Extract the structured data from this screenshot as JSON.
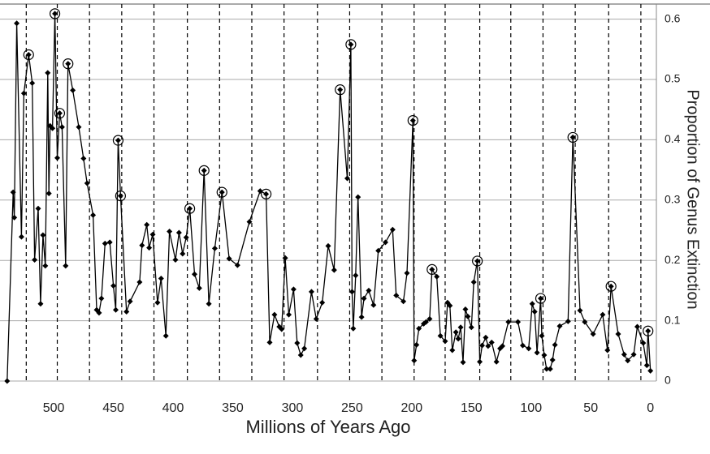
{
  "chart_data": {
    "type": "line",
    "x_label": "Millions of Years Ago",
    "y_label": "Proportion of Genus Extinction",
    "xlim": [
      545,
      -5
    ],
    "ylim": [
      0,
      0.625
    ],
    "xticks": [
      500,
      450,
      400,
      350,
      300,
      250,
      200,
      150,
      100,
      50,
      0
    ],
    "yticks": [
      0,
      0.1,
      0.2,
      0.3,
      0.4,
      0.5,
      0.6
    ],
    "grid": true,
    "color": "#000000",
    "reference_lines": [
      523,
      497,
      470,
      443,
      416,
      388,
      361,
      334,
      307,
      279,
      252,
      225,
      198,
      172,
      143,
      117,
      90,
      63,
      35,
      8
    ],
    "highlight_indices": [
      6,
      17,
      19,
      22,
      35,
      36,
      52,
      55,
      58,
      63,
      79,
      81,
      96,
      103,
      118,
      134,
      143,
      149,
      157
    ],
    "x": [
      539,
      534,
      533,
      531,
      527,
      525,
      521,
      518,
      516,
      513,
      511,
      509,
      507,
      505,
      504,
      503,
      501,
      499,
      497,
      495,
      493,
      490,
      488,
      484,
      479,
      475,
      472,
      467,
      464,
      462,
      460,
      457,
      453,
      450,
      448,
      446,
      444,
      439,
      436,
      428,
      426,
      422,
      420,
      417,
      413,
      410,
      406,
      403,
      398,
      395,
      392,
      389,
      386,
      382,
      378,
      374,
      370,
      365,
      359,
      353,
      346,
      336,
      327,
      322,
      319,
      315,
      311,
      309,
      306,
      303,
      299,
      296,
      293,
      290,
      284,
      280,
      275,
      270,
      265,
      260,
      254,
      251,
      250,
      249,
      247,
      245,
      242,
      240,
      236,
      232,
      228,
      222,
      216,
      213,
      207,
      204,
      199,
      198,
      196,
      194,
      190,
      188,
      185,
      183,
      179,
      176,
      172,
      170,
      168,
      166,
      163,
      161,
      159,
      157,
      155,
      153,
      150,
      148,
      145,
      143,
      141,
      138,
      136,
      133,
      129,
      126,
      124,
      119,
      111,
      107,
      102,
      99,
      97,
      95,
      92,
      91,
      89,
      87,
      84,
      82,
      80,
      76,
      69,
      65,
      59,
      55,
      48,
      40,
      36,
      33,
      27,
      22,
      19,
      14,
      11,
      6,
      3,
      2,
      0
    ],
    "values": [
      0,
      0.313,
      0.271,
      0.593,
      0.239,
      0.477,
      0.541,
      0.494,
      0.201,
      0.286,
      0.128,
      0.242,
      0.191,
      0.511,
      0.311,
      0.423,
      0.419,
      0.609,
      0.37,
      0.444,
      0.421,
      0.191,
      0.526,
      0.482,
      0.421,
      0.369,
      0.328,
      0.275,
      0.118,
      0.113,
      0.137,
      0.228,
      0.23,
      0.158,
      0.118,
      0.399,
      0.307,
      0.115,
      0.132,
      0.164,
      0.225,
      0.259,
      0.221,
      0.243,
      0.13,
      0.17,
      0.075,
      0.248,
      0.201,
      0.246,
      0.211,
      0.238,
      0.286,
      0.177,
      0.154,
      0.349,
      0.128,
      0.22,
      0.313,
      0.203,
      0.192,
      0.264,
      0.315,
      0.31,
      0.064,
      0.11,
      0.09,
      0.086,
      0.204,
      0.11,
      0.152,
      0.063,
      0.043,
      0.054,
      0.148,
      0.103,
      0.13,
      0.224,
      0.184,
      0.483,
      0.336,
      0.558,
      0.148,
      0.087,
      0.175,
      0.305,
      0.106,
      0.137,
      0.15,
      0.126,
      0.216,
      0.23,
      0.251,
      0.142,
      0.132,
      0.179,
      0.432,
      0.034,
      0.06,
      0.087,
      0.095,
      0.098,
      0.103,
      0.185,
      0.173,
      0.075,
      0.066,
      0.13,
      0.125,
      0.051,
      0.081,
      0.07,
      0.089,
      0.031,
      0.119,
      0.107,
      0.089,
      0.164,
      0.199,
      0.032,
      0.059,
      0.072,
      0.058,
      0.064,
      0.032,
      0.054,
      0.058,
      0.098,
      0.098,
      0.059,
      0.054,
      0.128,
      0.115,
      0.047,
      0.137,
      0.075,
      0.043,
      0.02,
      0.02,
      0.035,
      0.06,
      0.091,
      0.099,
      0.404,
      0.117,
      0.098,
      0.078,
      0.11,
      0.051,
      0.157,
      0.078,
      0.044,
      0.034,
      0.044,
      0.09,
      0.063,
      0.026,
      0.083,
      0.017
    ]
  }
}
